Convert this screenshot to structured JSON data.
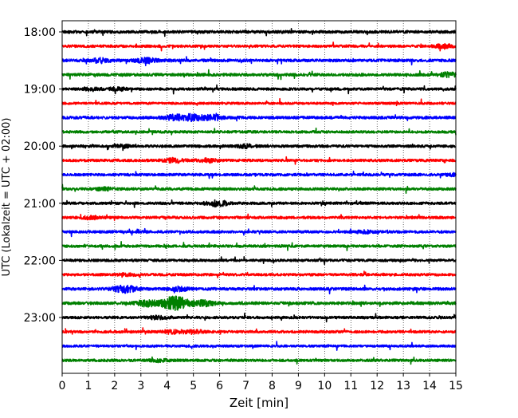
{
  "chart_data": {
    "type": "line",
    "title": "",
    "xlabel": "Zeit  [min]",
    "ylabel": "UTC (Lokalzeit = UTC + 02:00)",
    "xlim": [
      0,
      15
    ],
    "x_ticks": [
      0,
      1,
      2,
      3,
      4,
      5,
      6,
      7,
      8,
      9,
      10,
      11,
      12,
      13,
      14,
      15
    ],
    "x_tick_labels": [
      "0",
      "1",
      "2",
      "3",
      "4",
      "5",
      "6",
      "7",
      "8",
      "9",
      "10",
      "11",
      "12",
      "13",
      "14",
      "15"
    ],
    "y_tick_labels": [
      "18:00",
      "19:00",
      "20:00",
      "21:00",
      "22:00",
      "23:00"
    ],
    "y_tick_rows": [
      0,
      4,
      8,
      12,
      16,
      20
    ],
    "row_interval_minutes": 15,
    "grid": "vertical dotted at each minute",
    "legend": "none",
    "color_cycle": [
      "#000000",
      "#ff0000",
      "#0000ff",
      "#008000"
    ],
    "traces": [
      {
        "start": "18:00",
        "color": "#000000",
        "amplitude": 0.5,
        "bursts": []
      },
      {
        "start": "18:15",
        "color": "#ff0000",
        "amplitude": 0.45,
        "bursts": [
          {
            "t": 14.6,
            "amp": 0.7
          }
        ]
      },
      {
        "start": "18:30",
        "color": "#0000ff",
        "amplitude": 0.5,
        "bursts": [
          {
            "t": 1.5,
            "amp": 0.7
          },
          {
            "t": 3.2,
            "amp": 0.8
          }
        ]
      },
      {
        "start": "18:45",
        "color": "#008000",
        "amplitude": 0.5,
        "bursts": [
          {
            "t": 14.7,
            "amp": 0.6
          }
        ]
      },
      {
        "start": "19:00",
        "color": "#000000",
        "amplitude": 0.45,
        "bursts": [
          {
            "t": 1.1,
            "amp": 0.5
          },
          {
            "t": 2.1,
            "amp": 0.5
          }
        ]
      },
      {
        "start": "19:15",
        "color": "#ff0000",
        "amplitude": 0.4,
        "bursts": []
      },
      {
        "start": "19:30",
        "color": "#0000ff",
        "amplitude": 0.5,
        "bursts": [
          {
            "t": 4.3,
            "amp": 0.8
          },
          {
            "t": 5.0,
            "amp": 1.0
          },
          {
            "t": 5.8,
            "amp": 0.8
          }
        ]
      },
      {
        "start": "19:45",
        "color": "#008000",
        "amplitude": 0.45,
        "bursts": []
      },
      {
        "start": "20:00",
        "color": "#000000",
        "amplitude": 0.45,
        "bursts": [
          {
            "t": 2.3,
            "amp": 0.4
          },
          {
            "t": 7.0,
            "amp": 0.5
          }
        ]
      },
      {
        "start": "20:15",
        "color": "#ff0000",
        "amplitude": 0.45,
        "bursts": [
          {
            "t": 4.3,
            "amp": 0.7
          },
          {
            "t": 5.6,
            "amp": 0.6
          }
        ]
      },
      {
        "start": "20:30",
        "color": "#0000ff",
        "amplitude": 0.45,
        "bursts": [
          {
            "t": 14.9,
            "amp": 0.4
          }
        ]
      },
      {
        "start": "20:45",
        "color": "#008000",
        "amplitude": 0.45,
        "bursts": [
          {
            "t": 1.6,
            "amp": 0.4
          }
        ]
      },
      {
        "start": "21:00",
        "color": "#000000",
        "amplitude": 0.45,
        "bursts": [
          {
            "t": 5.9,
            "amp": 1.0
          }
        ]
      },
      {
        "start": "21:15",
        "color": "#ff0000",
        "amplitude": 0.45,
        "bursts": [
          {
            "t": 1.1,
            "amp": 0.5
          }
        ]
      },
      {
        "start": "21:30",
        "color": "#0000ff",
        "amplitude": 0.45,
        "bursts": [
          {
            "t": 11.5,
            "amp": 0.4
          }
        ]
      },
      {
        "start": "21:45",
        "color": "#008000",
        "amplitude": 0.45,
        "bursts": []
      },
      {
        "start": "22:00",
        "color": "#000000",
        "amplitude": 0.45,
        "bursts": []
      },
      {
        "start": "22:15",
        "color": "#ff0000",
        "amplitude": 0.45,
        "bursts": [
          {
            "t": 2.5,
            "amp": 0.4
          }
        ]
      },
      {
        "start": "22:30",
        "color": "#0000ff",
        "amplitude": 0.5,
        "bursts": [
          {
            "t": 2.4,
            "amp": 1.2
          },
          {
            "t": 4.5,
            "amp": 0.6
          }
        ]
      },
      {
        "start": "22:45",
        "color": "#008000",
        "amplitude": 0.5,
        "bursts": [
          {
            "t": 3.2,
            "amp": 0.9
          },
          {
            "t": 4.3,
            "amp": 2.2
          },
          {
            "t": 5.4,
            "amp": 1.0
          }
        ]
      },
      {
        "start": "23:00",
        "color": "#000000",
        "amplitude": 0.45,
        "bursts": [
          {
            "t": 3.6,
            "amp": 0.5
          }
        ]
      },
      {
        "start": "23:15",
        "color": "#ff0000",
        "amplitude": 0.45,
        "bursts": [
          {
            "t": 4.2,
            "amp": 0.6
          },
          {
            "t": 5.0,
            "amp": 0.6
          }
        ]
      },
      {
        "start": "23:30",
        "color": "#0000ff",
        "amplitude": 0.4,
        "bursts": []
      },
      {
        "start": "23:45",
        "color": "#008000",
        "amplitude": 0.45,
        "bursts": [
          {
            "t": 3.7,
            "amp": 0.4
          }
        ]
      }
    ]
  }
}
